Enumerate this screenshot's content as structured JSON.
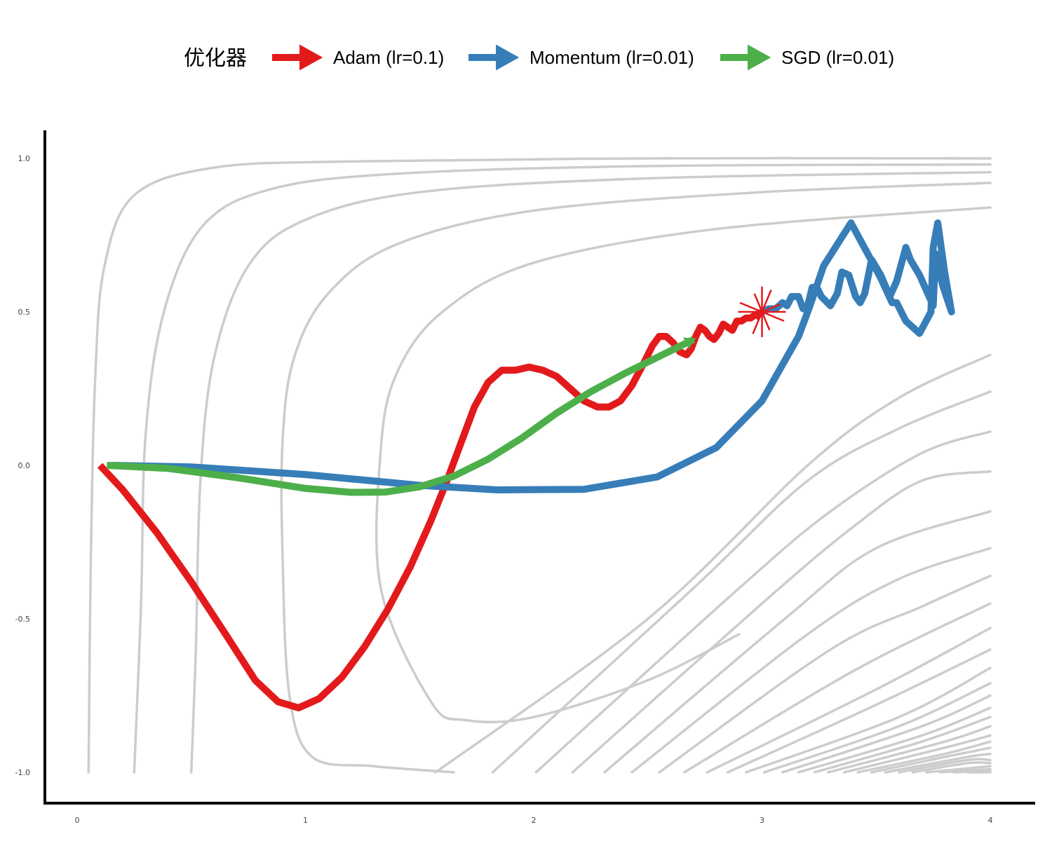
{
  "chart_data": {
    "type": "line",
    "legend": {
      "title": "优化器",
      "placement": "top-center",
      "entries": [
        {
          "label": "Adam (lr=0.1)",
          "color": "#e31a1c"
        },
        {
          "label": "Momentum (lr=0.01)",
          "color": "#377eb8"
        },
        {
          "label": "SGD (lr=0.01)",
          "color": "#4daf4a"
        }
      ]
    },
    "xlim": [
      -0.14,
      4.2
    ],
    "ylim": [
      -1.1,
      1.09
    ],
    "x_ticks": [
      {
        "value": 0,
        "label": "0"
      },
      {
        "value": 1,
        "label": "1"
      },
      {
        "value": 2,
        "label": "2"
      },
      {
        "value": 3,
        "label": "3"
      },
      {
        "value": 4,
        "label": "4"
      }
    ],
    "y_ticks": [
      {
        "value": 1.0,
        "label": "1.0"
      },
      {
        "value": 0.5,
        "label": "0.5"
      },
      {
        "value": 0.0,
        "label": "0.0"
      },
      {
        "value": -0.5,
        "label": "-0.5"
      },
      {
        "value": -1.0,
        "label": "-1.0"
      }
    ],
    "grid": false,
    "minimum": {
      "x": 3.0,
      "y": 0.5,
      "color": "#e31a1c"
    },
    "contour_color": "#cccccc",
    "series": [
      {
        "name": "Adam (lr=0.1)",
        "color": "#e31a1c",
        "end_arrow": true,
        "points": [
          [
            0.1,
            0.0
          ],
          [
            0.2,
            -0.08
          ],
          [
            0.35,
            -0.22
          ],
          [
            0.5,
            -0.38
          ],
          [
            0.65,
            -0.55
          ],
          [
            0.78,
            -0.7
          ],
          [
            0.88,
            -0.77
          ],
          [
            0.97,
            -0.79
          ],
          [
            1.06,
            -0.76
          ],
          [
            1.16,
            -0.69
          ],
          [
            1.26,
            -0.59
          ],
          [
            1.36,
            -0.47
          ],
          [
            1.46,
            -0.33
          ],
          [
            1.55,
            -0.18
          ],
          [
            1.62,
            -0.05
          ],
          [
            1.68,
            0.07
          ],
          [
            1.74,
            0.19
          ],
          [
            1.8,
            0.27
          ],
          [
            1.86,
            0.31
          ],
          [
            1.92,
            0.31
          ],
          [
            1.98,
            0.32
          ],
          [
            2.04,
            0.31
          ],
          [
            2.1,
            0.29
          ],
          [
            2.16,
            0.25
          ],
          [
            2.22,
            0.21
          ],
          [
            2.28,
            0.19
          ],
          [
            2.33,
            0.19
          ],
          [
            2.38,
            0.21
          ],
          [
            2.43,
            0.26
          ],
          [
            2.48,
            0.33
          ],
          [
            2.52,
            0.39
          ],
          [
            2.55,
            0.42
          ],
          [
            2.58,
            0.42
          ],
          [
            2.61,
            0.4
          ],
          [
            2.64,
            0.37
          ],
          [
            2.67,
            0.36
          ],
          [
            2.69,
            0.38
          ],
          [
            2.71,
            0.42
          ],
          [
            2.73,
            0.45
          ],
          [
            2.75,
            0.44
          ],
          [
            2.77,
            0.42
          ],
          [
            2.79,
            0.41
          ],
          [
            2.81,
            0.43
          ],
          [
            2.83,
            0.46
          ],
          [
            2.85,
            0.45
          ],
          [
            2.87,
            0.44
          ],
          [
            2.89,
            0.47
          ],
          [
            2.91,
            0.47
          ],
          [
            2.93,
            0.48
          ],
          [
            2.95,
            0.48
          ],
          [
            2.97,
            0.49
          ],
          [
            2.99,
            0.495
          ],
          [
            3.0,
            0.5
          ]
        ]
      },
      {
        "name": "Momentum (lr=0.01)",
        "color": "#377eb8",
        "end_arrow": false,
        "points": [
          [
            0.15,
            0.0
          ],
          [
            0.5,
            -0.005
          ],
          [
            1.0,
            -0.03
          ],
          [
            1.5,
            -0.065
          ],
          [
            1.84,
            -0.08
          ],
          [
            2.22,
            -0.078
          ],
          [
            2.54,
            -0.038
          ],
          [
            2.8,
            0.058
          ],
          [
            3.0,
            0.21
          ],
          [
            3.16,
            0.42
          ],
          [
            3.21,
            0.52
          ],
          [
            3.27,
            0.65
          ],
          [
            3.39,
            0.79
          ],
          [
            3.47,
            0.68
          ],
          [
            3.52,
            0.61
          ],
          [
            3.57,
            0.53
          ],
          [
            3.59,
            0.53
          ],
          [
            3.63,
            0.47
          ],
          [
            3.69,
            0.43
          ],
          [
            3.74,
            0.5
          ],
          [
            3.75,
            0.71
          ],
          [
            3.77,
            0.79
          ],
          [
            3.8,
            0.63
          ],
          [
            3.83,
            0.5
          ],
          [
            3.79,
            0.59
          ],
          [
            3.76,
            0.69
          ],
          [
            3.75,
            0.52
          ],
          [
            3.69,
            0.62
          ],
          [
            3.65,
            0.67
          ],
          [
            3.63,
            0.71
          ],
          [
            3.59,
            0.6
          ],
          [
            3.56,
            0.55
          ],
          [
            3.52,
            0.62
          ],
          [
            3.48,
            0.67
          ],
          [
            3.45,
            0.56
          ],
          [
            3.43,
            0.53
          ],
          [
            3.41,
            0.55
          ],
          [
            3.38,
            0.62
          ],
          [
            3.35,
            0.63
          ],
          [
            3.33,
            0.56
          ],
          [
            3.3,
            0.52
          ],
          [
            3.26,
            0.55
          ],
          [
            3.24,
            0.58
          ],
          [
            3.22,
            0.58
          ],
          [
            3.2,
            0.52
          ],
          [
            3.18,
            0.51
          ],
          [
            3.16,
            0.55
          ],
          [
            3.13,
            0.55
          ],
          [
            3.11,
            0.52
          ],
          [
            3.09,
            0.53
          ],
          [
            3.06,
            0.51
          ],
          [
            3.03,
            0.51
          ],
          [
            3.0,
            0.5
          ]
        ]
      },
      {
        "name": "SGD (lr=0.01)",
        "color": "#4daf4a",
        "end_arrow": true,
        "points": [
          [
            0.13,
            0.0
          ],
          [
            0.4,
            -0.01
          ],
          [
            0.7,
            -0.04
          ],
          [
            1.0,
            -0.075
          ],
          [
            1.2,
            -0.088
          ],
          [
            1.35,
            -0.087
          ],
          [
            1.5,
            -0.07
          ],
          [
            1.65,
            -0.035
          ],
          [
            1.8,
            0.02
          ],
          [
            1.95,
            0.09
          ],
          [
            2.1,
            0.17
          ],
          [
            2.25,
            0.24
          ],
          [
            2.4,
            0.3
          ],
          [
            2.55,
            0.355
          ],
          [
            2.7,
            0.41
          ]
        ]
      }
    ],
    "contours": [
      [
        [
          0.05,
          -1.0
        ],
        [
          0.06,
          -0.3
        ],
        [
          0.08,
          0.3
        ],
        [
          0.12,
          0.65
        ],
        [
          0.25,
          0.88
        ],
        [
          0.6,
          0.97
        ],
        [
          1.2,
          0.99
        ],
        [
          2.5,
          1.0
        ],
        [
          4.0,
          1.0
        ]
      ],
      [
        [
          0.25,
          -1.0
        ],
        [
          0.28,
          -0.45
        ],
        [
          0.3,
          0.1
        ],
        [
          0.38,
          0.5
        ],
        [
          0.55,
          0.78
        ],
        [
          0.85,
          0.9
        ],
        [
          1.4,
          0.95
        ],
        [
          2.5,
          0.975
        ],
        [
          4.0,
          0.98
        ]
      ],
      [
        [
          0.5,
          -1.0
        ],
        [
          0.52,
          -0.6
        ],
        [
          0.54,
          -0.05
        ],
        [
          0.6,
          0.35
        ],
        [
          0.75,
          0.65
        ],
        [
          1.0,
          0.8
        ],
        [
          1.5,
          0.89
        ],
        [
          2.5,
          0.935
        ],
        [
          4.0,
          0.955
        ]
      ],
      [
        [
          1.65,
          -1.0
        ],
        [
          1.3,
          -0.98
        ],
        [
          1.03,
          -0.95
        ],
        [
          0.93,
          -0.75
        ],
        [
          0.9,
          -0.3
        ],
        [
          0.9,
          0.08
        ],
        [
          0.95,
          0.35
        ],
        [
          1.1,
          0.56
        ],
        [
          1.4,
          0.72
        ],
        [
          2.0,
          0.83
        ],
        [
          3.0,
          0.89
        ],
        [
          4.0,
          0.92
        ]
      ],
      [
        [
          2.9,
          -0.55
        ],
        [
          2.5,
          -0.7
        ],
        [
          2.0,
          -0.82
        ],
        [
          1.7,
          -0.83
        ],
        [
          1.55,
          -0.77
        ],
        [
          1.33,
          -0.4
        ],
        [
          1.33,
          0.05
        ],
        [
          1.4,
          0.3
        ],
        [
          1.6,
          0.5
        ],
        [
          2.0,
          0.66
        ],
        [
          2.8,
          0.77
        ],
        [
          4.0,
          0.84
        ]
      ],
      [
        [
          1.57,
          -1.0
        ],
        [
          2.5,
          -0.5
        ],
        [
          3.2,
          0.0
        ],
        [
          3.6,
          0.22
        ],
        [
          4.0,
          0.36
        ]
      ],
      [
        [
          1.82,
          -1.0
        ],
        [
          2.7,
          -0.4
        ],
        [
          3.2,
          -0.05
        ],
        [
          3.6,
          0.12
        ],
        [
          4.0,
          0.24
        ]
      ],
      [
        [
          2.01,
          -1.0
        ],
        [
          2.9,
          -0.4
        ],
        [
          3.3,
          -0.15
        ],
        [
          3.7,
          0.04
        ],
        [
          4.0,
          0.11
        ]
      ],
      [
        [
          2.17,
          -1.0
        ],
        [
          3.0,
          -0.45
        ],
        [
          3.4,
          -0.2
        ],
        [
          3.7,
          -0.05
        ],
        [
          4.0,
          -0.02
        ]
      ],
      [
        [
          2.31,
          -1.0
        ],
        [
          3.1,
          -0.5
        ],
        [
          3.5,
          -0.27
        ],
        [
          4.0,
          -0.15
        ]
      ],
      [
        [
          2.43,
          -1.0
        ],
        [
          3.2,
          -0.55
        ],
        [
          3.6,
          -0.37
        ],
        [
          4.0,
          -0.27
        ]
      ],
      [
        [
          2.55,
          -1.0
        ],
        [
          3.3,
          -0.6
        ],
        [
          3.7,
          -0.46
        ],
        [
          4.0,
          -0.36
        ]
      ],
      [
        [
          2.66,
          -1.0
        ],
        [
          3.4,
          -0.67
        ],
        [
          4.0,
          -0.45
        ]
      ],
      [
        [
          2.76,
          -1.0
        ],
        [
          3.5,
          -0.73
        ],
        [
          4.0,
          -0.53
        ]
      ],
      [
        [
          2.85,
          -1.0
        ],
        [
          3.5,
          -0.78
        ],
        [
          4.0,
          -0.6
        ]
      ],
      [
        [
          2.93,
          -1.0
        ],
        [
          3.6,
          -0.82
        ],
        [
          4.0,
          -0.66
        ]
      ],
      [
        [
          3.01,
          -1.0
        ],
        [
          3.6,
          -0.85
        ],
        [
          4.0,
          -0.71
        ]
      ],
      [
        [
          3.09,
          -1.0
        ],
        [
          3.7,
          -0.85
        ],
        [
          4.0,
          -0.75
        ]
      ],
      [
        [
          3.16,
          -1.0
        ],
        [
          3.7,
          -0.88
        ],
        [
          4.0,
          -0.79
        ]
      ],
      [
        [
          3.23,
          -1.0
        ],
        [
          3.7,
          -0.9
        ],
        [
          4.0,
          -0.82
        ]
      ],
      [
        [
          3.29,
          -1.0
        ],
        [
          3.8,
          -0.9
        ],
        [
          4.0,
          -0.85
        ]
      ],
      [
        [
          3.36,
          -1.0
        ],
        [
          3.8,
          -0.92
        ],
        [
          4.0,
          -0.88
        ]
      ],
      [
        [
          3.42,
          -1.0
        ],
        [
          3.8,
          -0.94
        ],
        [
          4.0,
          -0.9
        ]
      ],
      [
        [
          3.48,
          -1.0
        ],
        [
          3.8,
          -0.95
        ],
        [
          4.0,
          -0.92
        ]
      ],
      [
        [
          3.54,
          -1.0
        ],
        [
          3.9,
          -0.95
        ],
        [
          4.0,
          -0.94
        ]
      ],
      [
        [
          3.6,
          -1.0
        ],
        [
          3.9,
          -0.96
        ],
        [
          4.0,
          -0.96
        ]
      ],
      [
        [
          3.66,
          -1.0
        ],
        [
          3.9,
          -0.97
        ],
        [
          4.0,
          -0.97
        ]
      ],
      [
        [
          3.72,
          -1.0
        ],
        [
          4.0,
          -0.98
        ]
      ],
      [
        [
          3.78,
          -1.0
        ],
        [
          4.0,
          -0.99
        ]
      ],
      [
        [
          3.84,
          -1.0
        ],
        [
          4.0,
          -0.995
        ]
      ],
      [
        [
          3.9,
          -1.0
        ],
        [
          4.0,
          -1.0
        ]
      ]
    ]
  }
}
